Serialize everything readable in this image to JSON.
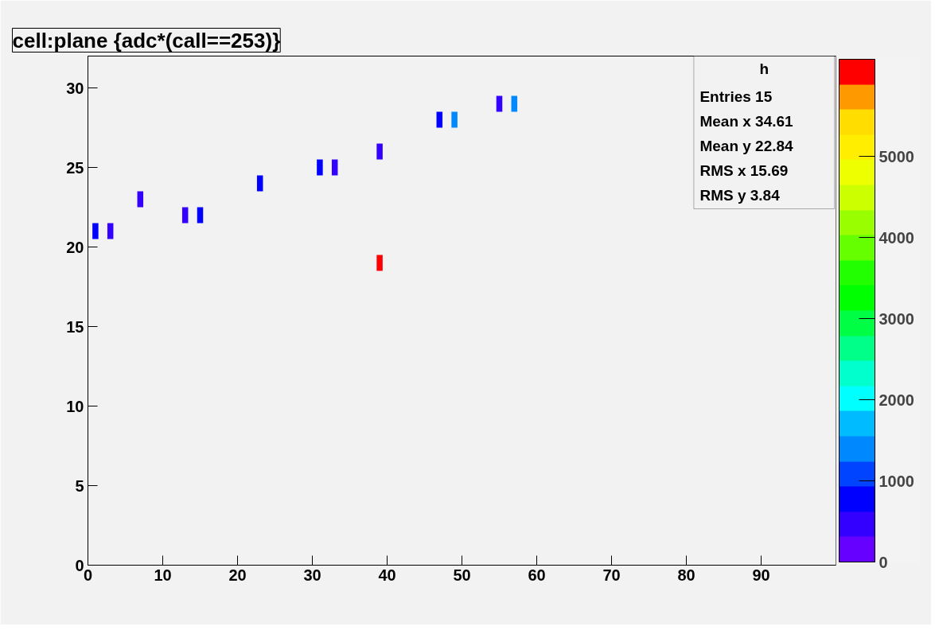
{
  "chart_data": {
    "type": "scatter",
    "title": "cell:plane {adc*(call==253)}",
    "x": [
      1,
      3,
      7,
      13,
      15,
      23,
      31,
      33,
      39,
      39,
      47,
      49,
      55,
      57
    ],
    "values": [
      21,
      21,
      23,
      22,
      22,
      24,
      25,
      25,
      26,
      19,
      28,
      28,
      29,
      29
    ],
    "cvalues": [
      800,
      450,
      450,
      450,
      800,
      800,
      800,
      450,
      450,
      6000,
      800,
      1400,
      450,
      1400
    ],
    "marker": "square",
    "xlim": [
      0,
      100
    ],
    "xticks": [
      0,
      10,
      20,
      30,
      40,
      50,
      60,
      70,
      80,
      90
    ],
    "ylim": [
      0,
      32
    ],
    "yticks": [
      0,
      5,
      10,
      15,
      20,
      25,
      30
    ],
    "clim": [
      0,
      6200
    ],
    "cticks": [
      0,
      1000,
      2000,
      3000,
      4000,
      5000
    ],
    "grid": false,
    "annotations": [
      "h",
      "Entries 15",
      "Mean x 34.61",
      "Mean y 22.84",
      "RMS x 15.69",
      "RMS y 3.84"
    ]
  }
}
